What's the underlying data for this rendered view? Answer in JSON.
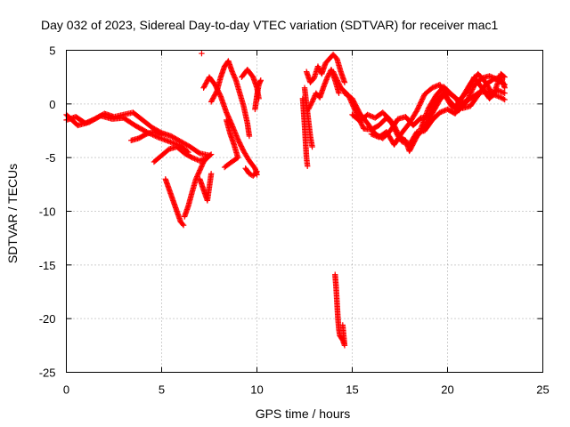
{
  "chart_data": {
    "type": "scatter",
    "title": "Day 032 of 2023, Sidereal Day-to-day VTEC variation (SDTVAR) for receiver mac1",
    "xlabel": "GPS time / hours",
    "ylabel": "SDTVAR / TECUs",
    "xlim": [
      0,
      25
    ],
    "ylim": [
      -25,
      5
    ],
    "xticks": [
      0,
      5,
      10,
      15,
      20,
      25
    ],
    "yticks": [
      5,
      0,
      -5,
      -10,
      -15,
      -20,
      -25
    ],
    "xtick_labels": [
      "0",
      "5",
      "10",
      "15",
      "20",
      "25"
    ],
    "ytick_labels": [
      "5",
      "0",
      "-5",
      "-10",
      "-15",
      "-20",
      "-25"
    ],
    "grid": true,
    "marker": "+",
    "color": "#ff0000",
    "series": [
      {
        "name": "SDTVAR",
        "tracks": [
          [
            [
              0.0,
              -1.5
            ],
            [
              0.5,
              -1.2
            ],
            [
              1.0,
              -1.8
            ],
            [
              1.5,
              -1.4
            ],
            [
              2.0,
              -0.9
            ],
            [
              2.5,
              -1.2
            ],
            [
              3.0,
              -1.0
            ],
            [
              3.5,
              -0.8
            ],
            [
              4.0,
              -1.5
            ],
            [
              4.5,
              -2.2
            ],
            [
              5.0,
              -2.7
            ],
            [
              5.5,
              -3.0
            ],
            [
              6.0,
              -3.5
            ],
            [
              6.5,
              -4.0
            ],
            [
              7.0,
              -4.6
            ],
            [
              7.5,
              -4.8
            ]
          ],
          [
            [
              0.0,
              -1.0
            ],
            [
              0.6,
              -2.0
            ],
            [
              1.2,
              -1.7
            ],
            [
              1.8,
              -1.1
            ],
            [
              2.4,
              -1.4
            ],
            [
              3.0,
              -1.3
            ],
            [
              3.6,
              -2.0
            ],
            [
              4.2,
              -2.6
            ],
            [
              4.8,
              -3.1
            ],
            [
              5.4,
              -3.5
            ],
            [
              6.0,
              -3.9
            ],
            [
              6.4,
              -4.5
            ]
          ],
          [
            [
              3.4,
              -3.4
            ],
            [
              3.8,
              -3.2
            ],
            [
              4.2,
              -2.8
            ],
            [
              4.6,
              -2.6
            ],
            [
              5.0,
              -2.9
            ]
          ],
          [
            [
              4.6,
              -5.4
            ],
            [
              5.0,
              -4.8
            ],
            [
              5.4,
              -4.2
            ],
            [
              5.8,
              -4.0
            ],
            [
              6.2,
              -4.6
            ],
            [
              6.6,
              -5.0
            ],
            [
              7.0,
              -5.3
            ],
            [
              7.4,
              -5.0
            ],
            [
              7.6,
              -4.7
            ]
          ],
          [
            [
              5.2,
              -7.0
            ],
            [
              5.4,
              -8.0
            ],
            [
              5.6,
              -9.0
            ],
            [
              5.8,
              -10.0
            ],
            [
              6.0,
              -11.0
            ],
            [
              6.15,
              -11.3
            ]
          ],
          [
            [
              6.2,
              -10.5
            ],
            [
              6.4,
              -9.5
            ],
            [
              6.6,
              -8.2
            ],
            [
              6.8,
              -7.0
            ],
            [
              7.0,
              -6.2
            ],
            [
              7.2,
              -5.4
            ],
            [
              7.4,
              -5.0
            ]
          ],
          [
            [
              7.0,
              -7.0
            ],
            [
              7.2,
              -8.0
            ],
            [
              7.4,
              -9.0
            ],
            [
              7.6,
              -6.5
            ]
          ],
          [
            [
              7.1,
              4.7
            ]
          ],
          [
            [
              7.2,
              1.5
            ],
            [
              7.5,
              2.5
            ],
            [
              7.8,
              1.8
            ],
            [
              8.1,
              0.7
            ],
            [
              8.4,
              -0.8
            ],
            [
              8.7,
              -2.0
            ],
            [
              9.0,
              -3.3
            ],
            [
              9.3,
              -4.4
            ],
            [
              9.6,
              -5.3
            ],
            [
              9.9,
              -6.0
            ],
            [
              10.0,
              -6.6
            ]
          ],
          [
            [
              7.6,
              0.2
            ],
            [
              7.9,
              1.2
            ],
            [
              8.1,
              2.5
            ],
            [
              8.3,
              3.5
            ],
            [
              8.5,
              4.0
            ],
            [
              8.7,
              3.0
            ],
            [
              8.9,
              2.2
            ],
            [
              9.1,
              1.0
            ],
            [
              9.3,
              -0.2
            ],
            [
              9.5,
              -1.8
            ],
            [
              9.6,
              -3.0
            ]
          ],
          [
            [
              8.4,
              -1.5
            ],
            [
              8.6,
              -2.8
            ],
            [
              8.8,
              -3.8
            ],
            [
              9.0,
              -5.0
            ],
            [
              8.6,
              -5.5
            ],
            [
              8.3,
              -5.9
            ]
          ],
          [
            [
              9.4,
              -6.0
            ],
            [
              9.6,
              -6.5
            ],
            [
              9.8,
              -6.7
            ],
            [
              10.0,
              -6.3
            ]
          ],
          [
            [
              9.2,
              2.5
            ],
            [
              9.5,
              3.2
            ],
            [
              9.8,
              2.5
            ],
            [
              10.0,
              1.5
            ],
            [
              10.1,
              0.5
            ]
          ],
          [
            [
              9.9,
              -0.5
            ],
            [
              10.0,
              0.8
            ],
            [
              10.1,
              1.8
            ],
            [
              10.2,
              2.2
            ]
          ],
          [
            [
              12.4,
              0.5
            ],
            [
              12.5,
              -2.0
            ],
            [
              12.55,
              -3.5
            ],
            [
              12.6,
              -5.0
            ],
            [
              12.65,
              -5.8
            ]
          ],
          [
            [
              12.6,
              3.0
            ],
            [
              12.8,
              2.0
            ],
            [
              13.0,
              2.4
            ],
            [
              13.2,
              3.5
            ],
            [
              13.4,
              2.8
            ],
            [
              13.6,
              3.8
            ],
            [
              13.8,
              4.2
            ],
            [
              14.0,
              4.6
            ],
            [
              14.2,
              4.2
            ],
            [
              14.4,
              3.0
            ],
            [
              14.6,
              2.0
            ]
          ],
          [
            [
              12.7,
              -0.5
            ],
            [
              12.9,
              0.2
            ],
            [
              13.1,
              1.0
            ],
            [
              13.3,
              0.6
            ],
            [
              13.5,
              1.6
            ],
            [
              13.7,
              2.5
            ],
            [
              13.9,
              3.2
            ],
            [
              14.1,
              2.2
            ],
            [
              14.3,
              1.0
            ]
          ],
          [
            [
              12.5,
              1.5
            ],
            [
              12.6,
              0.0
            ],
            [
              12.7,
              -1.5
            ],
            [
              12.8,
              -3.0
            ],
            [
              12.9,
              -4.0
            ]
          ],
          [
            [
              14.1,
              -15.9
            ],
            [
              14.15,
              -17.0
            ],
            [
              14.2,
              -18.5
            ],
            [
              14.25,
              -20.0
            ],
            [
              14.3,
              -21.0
            ],
            [
              14.35,
              -21.6
            ],
            [
              14.5,
              -22.0
            ],
            [
              14.6,
              -22.5
            ],
            [
              14.5,
              -20.6
            ]
          ],
          [
            [
              14.0,
              3.0
            ],
            [
              14.4,
              1.5
            ],
            [
              14.8,
              0.8
            ],
            [
              15.2,
              -0.8
            ],
            [
              15.6,
              -2.3
            ],
            [
              16.0,
              -2.4
            ],
            [
              16.4,
              -2.0
            ],
            [
              16.8,
              -1.3
            ],
            [
              17.2,
              -2.0
            ],
            [
              17.6,
              -3.5
            ],
            [
              18.0,
              -3.8
            ],
            [
              18.4,
              -2.6
            ],
            [
              18.8,
              -2.5
            ],
            [
              19.2,
              -1.5
            ],
            [
              19.6,
              -0.8
            ],
            [
              20.0,
              -0.5
            ],
            [
              20.4,
              -0.9
            ],
            [
              20.8,
              0.1
            ],
            [
              21.2,
              0.5
            ],
            [
              21.6,
              1.0
            ],
            [
              22.0,
              1.2
            ],
            [
              22.4,
              0.9
            ],
            [
              22.8,
              0.6
            ],
            [
              23.0,
              0.4
            ]
          ],
          [
            [
              14.6,
              1.0
            ],
            [
              15.0,
              0.5
            ],
            [
              15.4,
              -0.9
            ],
            [
              15.8,
              -1.8
            ],
            [
              16.2,
              -2.8
            ],
            [
              16.6,
              -3.2
            ],
            [
              17.0,
              -2.5
            ],
            [
              17.4,
              -1.4
            ],
            [
              17.8,
              -1.2
            ],
            [
              18.2,
              -2.0
            ],
            [
              18.6,
              -1.3
            ],
            [
              19.0,
              -1.2
            ],
            [
              19.4,
              0.2
            ],
            [
              19.8,
              1.0
            ],
            [
              20.2,
              -0.2
            ],
            [
              20.6,
              -0.6
            ],
            [
              21.0,
              0.2
            ],
            [
              21.4,
              1.7
            ],
            [
              21.8,
              2.4
            ],
            [
              22.2,
              2.6
            ],
            [
              22.6,
              2.3
            ],
            [
              23.0,
              1.8
            ]
          ],
          [
            [
              15.0,
              -1.0
            ],
            [
              15.4,
              -1.6
            ],
            [
              15.8,
              -1.0
            ],
            [
              16.2,
              -1.3
            ],
            [
              16.6,
              -0.8
            ],
            [
              17.0,
              -1.5
            ],
            [
              17.4,
              -3.0
            ],
            [
              17.8,
              -3.4
            ],
            [
              18.0,
              -4.4
            ],
            [
              18.4,
              -3.0
            ],
            [
              18.8,
              -2.2
            ],
            [
              19.2,
              -0.9
            ],
            [
              19.6,
              0.4
            ],
            [
              20.0,
              1.1
            ],
            [
              20.4,
              0.6
            ],
            [
              20.8,
              -0.4
            ],
            [
              21.2,
              -0.2
            ],
            [
              21.6,
              0.8
            ],
            [
              22.0,
              1.8
            ],
            [
              22.4,
              2.3
            ],
            [
              22.8,
              2.5
            ],
            [
              23.0,
              1.5
            ]
          ],
          [
            [
              16.0,
              -2.8
            ],
            [
              16.4,
              -3.1
            ],
            [
              16.8,
              -2.6
            ],
            [
              17.2,
              -3.8
            ],
            [
              17.6,
              -2.7
            ],
            [
              18.0,
              -1.8
            ],
            [
              18.4,
              -0.6
            ],
            [
              18.8,
              0.9
            ],
            [
              19.2,
              1.5
            ],
            [
              19.6,
              1.8
            ],
            [
              20.0,
              0.5
            ],
            [
              20.4,
              -0.3
            ],
            [
              20.8,
              0.7
            ],
            [
              21.2,
              1.9
            ],
            [
              21.6,
              2.8
            ],
            [
              22.0,
              2.0
            ],
            [
              22.4,
              0.8
            ],
            [
              22.8,
              2.8
            ],
            [
              23.0,
              2.5
            ]
          ],
          [
            [
              18.6,
              -2.3
            ],
            [
              19.0,
              -0.4
            ],
            [
              19.4,
              0.8
            ],
            [
              19.8,
              1.6
            ],
            [
              20.2,
              0.9
            ],
            [
              20.6,
              0.3
            ],
            [
              21.0,
              1.1
            ],
            [
              21.4,
              2.5
            ],
            [
              21.8,
              1.5
            ],
            [
              22.2,
              0.5
            ],
            [
              22.6,
              1.3
            ],
            [
              23.0,
              1.0
            ]
          ]
        ]
      }
    ]
  }
}
